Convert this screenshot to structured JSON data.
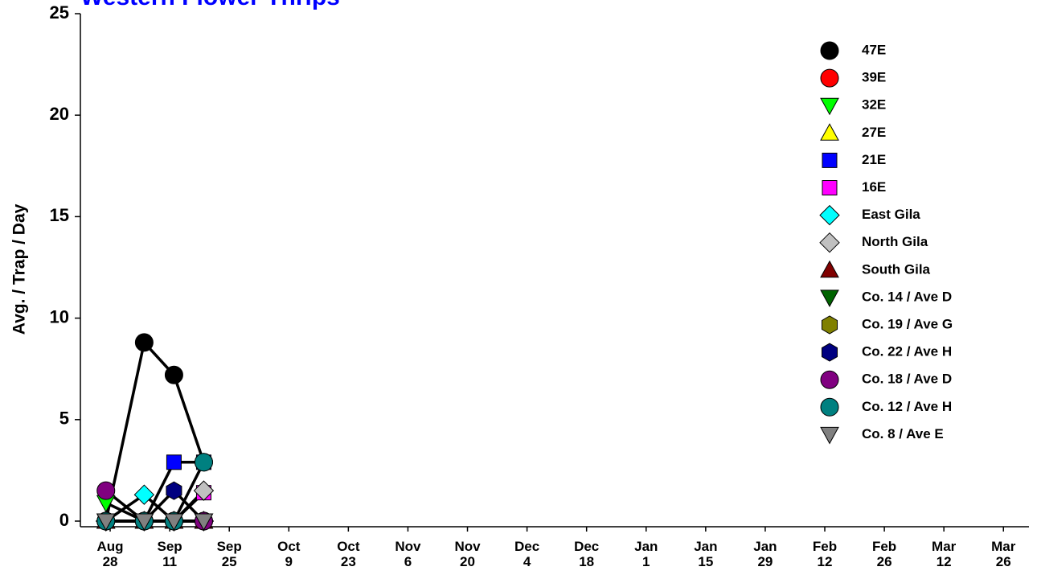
{
  "chart_data": {
    "type": "line",
    "title": "Western Flower Thrips",
    "title_color": "#0000ff",
    "ylabel": "Avg. / Trap / Day",
    "x": [
      "Aug 27",
      "Sep 5",
      "Sep 12",
      "Sep 19"
    ],
    "xlim": [
      "Aug 21",
      "Apr 1"
    ],
    "xticks": [
      "Aug 28",
      "Sep 11",
      "Sep 25",
      "Oct 9",
      "Oct 23",
      "Nov 6",
      "Nov 20",
      "Dec 4",
      "Dec 18",
      "Jan 1",
      "Jan 15",
      "Jan 29",
      "Feb 12",
      "Feb 26",
      "Mar 12",
      "Mar 26"
    ],
    "ylim": [
      0,
      25
    ],
    "yticks": [
      0,
      5,
      10,
      15,
      20,
      25
    ],
    "line_color": "#000000",
    "legend": "upper right",
    "series": [
      {
        "name": "47E",
        "color": "#000000",
        "marker": "circle",
        "values": [
          0,
          8.8,
          7.2,
          2.9
        ]
      },
      {
        "name": "39E",
        "color": "#ff0000",
        "marker": "circle",
        "values": [
          0,
          0,
          0,
          0
        ]
      },
      {
        "name": "32E",
        "color": "#00ff00",
        "marker": "triangle-down",
        "values": [
          0.9,
          0,
          0,
          0
        ]
      },
      {
        "name": "27E",
        "color": "#ffff00",
        "marker": "triangle-up",
        "values": [
          0,
          0,
          0,
          0
        ]
      },
      {
        "name": "21E",
        "color": "#0000ff",
        "marker": "square",
        "values": [
          0,
          0,
          2.9,
          2.9
        ]
      },
      {
        "name": "16E",
        "color": "#ff00ff",
        "marker": "square",
        "values": [
          0,
          0,
          0,
          1.4
        ]
      },
      {
        "name": "East Gila",
        "color": "#00ffff",
        "marker": "diamond",
        "values": [
          0,
          1.3,
          0,
          0
        ]
      },
      {
        "name": "North Gila",
        "color": "#c0c0c0",
        "marker": "diamond",
        "values": [
          0,
          0,
          0,
          1.5
        ]
      },
      {
        "name": "South Gila",
        "color": "#800000",
        "marker": "triangle-up",
        "values": [
          0,
          0,
          0,
          0
        ]
      },
      {
        "name": "Co. 14 / Ave D",
        "color": "#006400",
        "marker": "triangle-down",
        "values": [
          0,
          0,
          0,
          0
        ]
      },
      {
        "name": "Co. 19 / Ave G",
        "color": "#808000",
        "marker": "hexagon",
        "values": [
          0,
          0,
          0,
          0
        ]
      },
      {
        "name": "Co. 22 / Ave H",
        "color": "#000080",
        "marker": "hexagon",
        "values": [
          0,
          0,
          1.5,
          0
        ]
      },
      {
        "name": "Co. 18 / Ave D",
        "color": "#800080",
        "marker": "circle",
        "values": [
          1.5,
          0,
          0,
          0
        ]
      },
      {
        "name": "Co. 12 / Ave H",
        "color": "#008080",
        "marker": "circle",
        "values": [
          0,
          0,
          0,
          2.9
        ]
      },
      {
        "name": "Co. 8 / Ave E",
        "color": "#808080",
        "marker": "triangle-down",
        "values": [
          0,
          0,
          0,
          0
        ]
      }
    ]
  }
}
